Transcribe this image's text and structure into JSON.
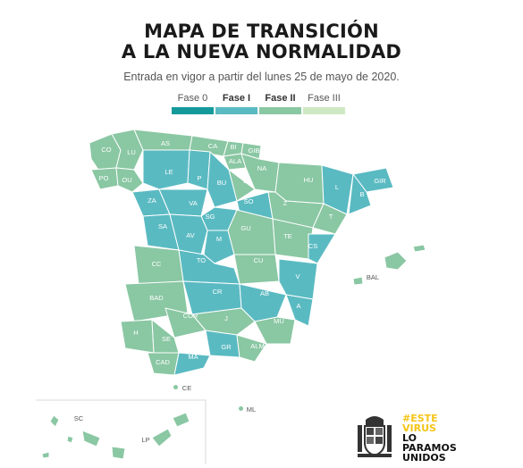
{
  "header": {
    "title_line1": "MAPA DE TRANSICIÓN",
    "title_line2": "A LA NUEVA NORMALIDAD",
    "subtitle": "Entrada en vigor a partir del lunes 25 de mayo de 2020."
  },
  "legend": [
    {
      "label": "Fase 0",
      "color": "#159a9c",
      "bold": false
    },
    {
      "label": "Fase I",
      "color": "#5abac2",
      "bold": true
    },
    {
      "label": "Fase II",
      "color": "#8ac7a3",
      "bold": true
    },
    {
      "label": "Fase III",
      "color": "#cfe8c4",
      "bold": false
    }
  ],
  "colors": {
    "fase1": "#5abac2",
    "fase2": "#8ac7a3",
    "border": "#ffffff"
  },
  "provinces": {
    "CO": "CO",
    "LU": "LU",
    "AS": "AS",
    "CA": "CA",
    "BI": "BI",
    "GIB": "GIB",
    "NA": "NA",
    "OU": "OU",
    "PO": "PO",
    "LE": "LE",
    "P": "P",
    "BU": "BU",
    "LR": "LR",
    "ALA": "ALA",
    "HU": "HU",
    "L": "L",
    "GIR": "GIR",
    "B": "B",
    "ZA": "ZA",
    "VA": "VA",
    "SO": "SO",
    "Z": "Z",
    "T": "T",
    "SA": "SA",
    "SG": "SG",
    "GU": "GU",
    "TE": "TE",
    "AV": "AV",
    "M": "M",
    "CS": "CS",
    "CC": "CC",
    "TO": "TO",
    "CU": "CU",
    "V": "V",
    "CR": "CR",
    "AB": "AB",
    "A": "A",
    "BAD": "BAD",
    "COR": "COR",
    "J": "J",
    "MU": "MU",
    "H": "H",
    "SE": "SE",
    "GR": "GR",
    "ALM": "ALM",
    "CAD": "CAD",
    "MA": "MA",
    "BAL": "BAL",
    "CE": "CE",
    "ML": "ML",
    "SC": "SC",
    "LP": "LP"
  },
  "logo": {
    "line1": "#ESTE",
    "line2": "VIRUS",
    "line3": "LO",
    "line4": "PARAMOS",
    "line5": "UNIDOS"
  }
}
